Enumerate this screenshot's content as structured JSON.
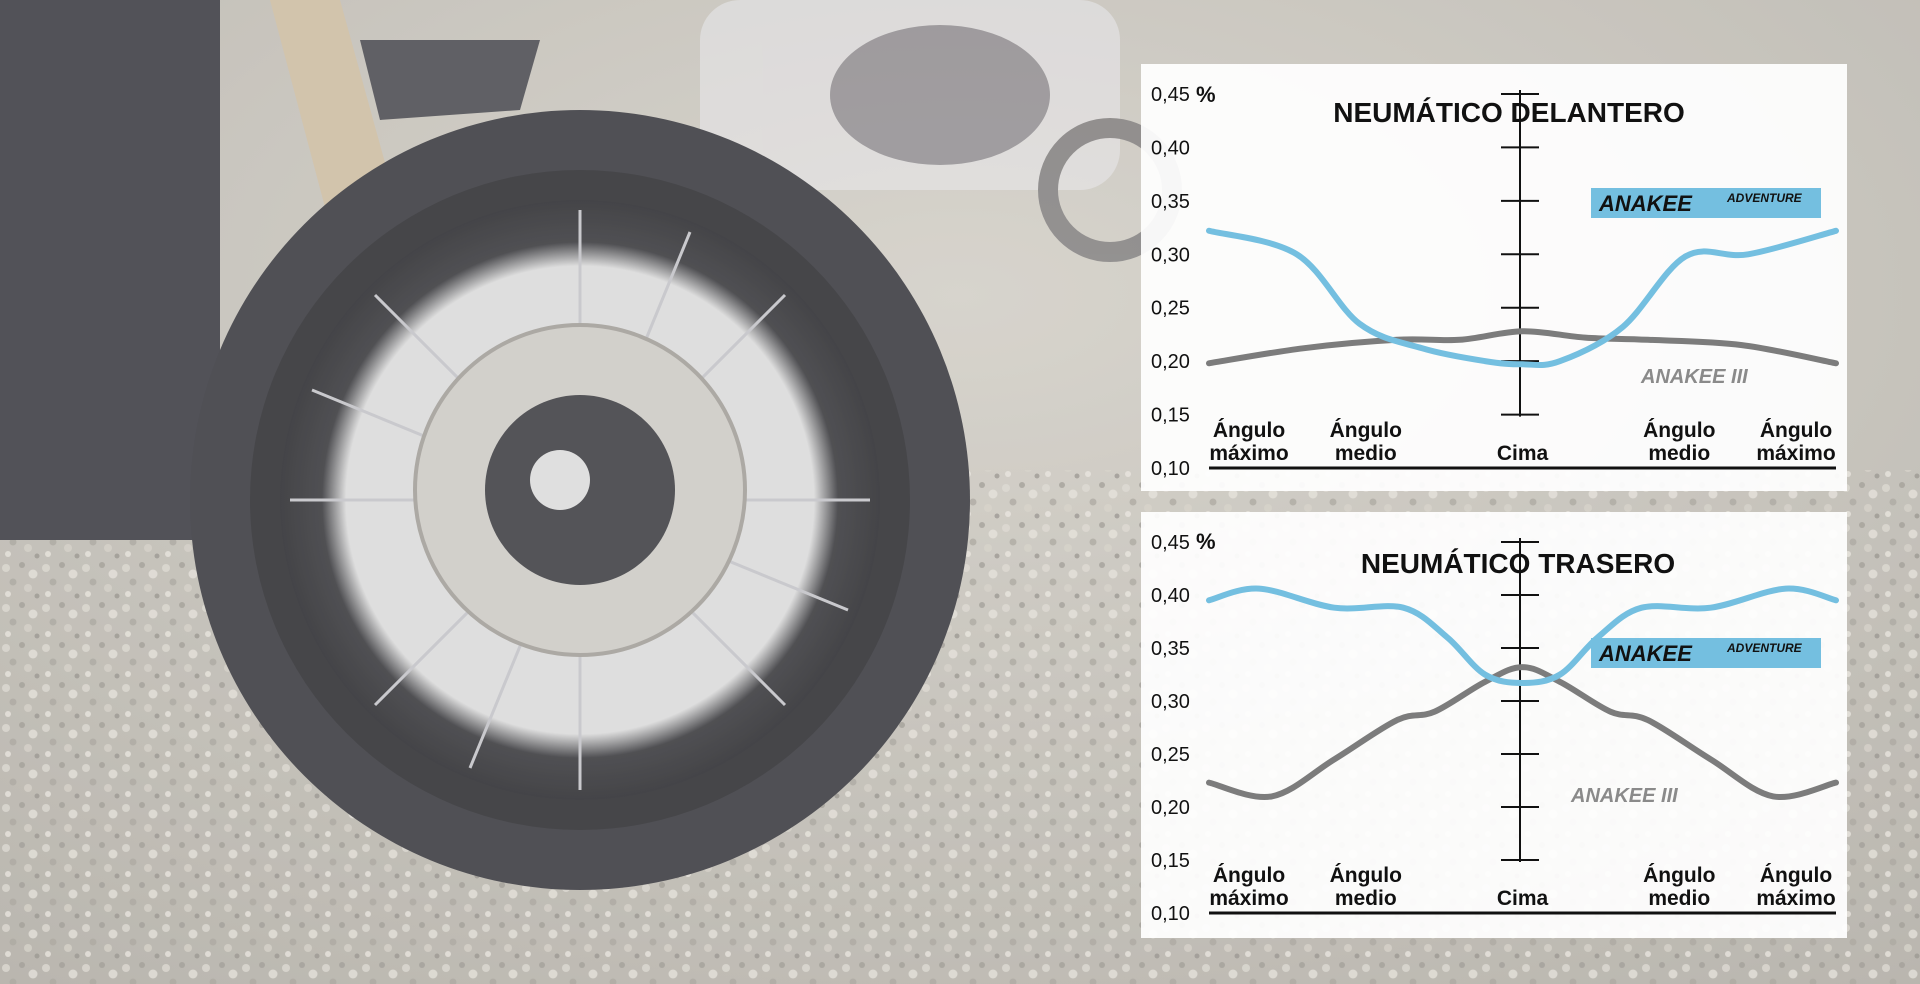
{
  "chart_data": [
    {
      "type": "line",
      "title": "NEUMÁTICO DELANTERO",
      "y_unit": "%",
      "yticks": [
        "0,10",
        "0,15",
        "0,20",
        "0,25",
        "0,30",
        "0,35",
        "0,40",
        "0,45"
      ],
      "ylim": [
        0.1,
        0.45
      ],
      "categories": [
        [
          "Ángulo",
          "máximo"
        ],
        [
          "Ángulo",
          "medio"
        ],
        [
          "Cima"
        ],
        [
          "Ángulo",
          "medio"
        ],
        [
          "Ángulo",
          "máximo"
        ]
      ],
      "x": [
        0,
        0.25,
        0.5,
        0.75,
        1
      ],
      "series": [
        {
          "name": "ANAKEE",
          "name_superscript": "ADVENTURE",
          "color": "#74bfe0",
          "x": [
            0,
            0.14,
            0.24,
            0.34,
            0.44,
            0.5,
            0.56,
            0.66,
            0.76,
            0.86,
            1
          ],
          "values": [
            0.322,
            0.3,
            0.235,
            0.212,
            0.2,
            0.197,
            0.2,
            0.232,
            0.298,
            0.3,
            0.322
          ]
        },
        {
          "name": "ANAKEE III",
          "color": "#7c7c7c",
          "x": [
            0,
            0.15,
            0.3,
            0.4,
            0.5,
            0.6,
            0.7,
            0.85,
            1
          ],
          "values": [
            0.198,
            0.212,
            0.22,
            0.22,
            0.228,
            0.222,
            0.22,
            0.215,
            0.198
          ]
        }
      ],
      "grid": false,
      "legend": "inline"
    },
    {
      "type": "line",
      "title": "NEUMÁTICO TRASERO",
      "y_unit": "%",
      "yticks": [
        "0,10",
        "0,15",
        "0,20",
        "0,25",
        "0,30",
        "0,35",
        "0,40",
        "0,45"
      ],
      "ylim": [
        0.1,
        0.45
      ],
      "categories": [
        [
          "Ángulo",
          "máximo"
        ],
        [
          "Ángulo",
          "medio"
        ],
        [
          "Cima"
        ],
        [
          "Ángulo",
          "medio"
        ],
        [
          "Ángulo",
          "máximo"
        ]
      ],
      "x": [
        0,
        0.25,
        0.5,
        0.75,
        1
      ],
      "series": [
        {
          "name": "ANAKEE",
          "name_superscript": "ADVENTURE",
          "color": "#74bfe0",
          "x": [
            0,
            0.08,
            0.2,
            0.31,
            0.38,
            0.44,
            0.5,
            0.56,
            0.62,
            0.69,
            0.8,
            0.92,
            1
          ],
          "values": [
            0.395,
            0.406,
            0.388,
            0.388,
            0.36,
            0.325,
            0.317,
            0.325,
            0.36,
            0.388,
            0.388,
            0.406,
            0.395
          ]
        },
        {
          "name": "ANAKEE III",
          "color": "#7c7c7c",
          "x": [
            0,
            0.1,
            0.2,
            0.3,
            0.36,
            0.44,
            0.5,
            0.56,
            0.64,
            0.7,
            0.8,
            0.9,
            1
          ],
          "values": [
            0.223,
            0.21,
            0.245,
            0.282,
            0.29,
            0.318,
            0.332,
            0.318,
            0.29,
            0.282,
            0.245,
            0.21,
            0.223
          ]
        }
      ],
      "grid": false,
      "legend": "inline"
    }
  ]
}
